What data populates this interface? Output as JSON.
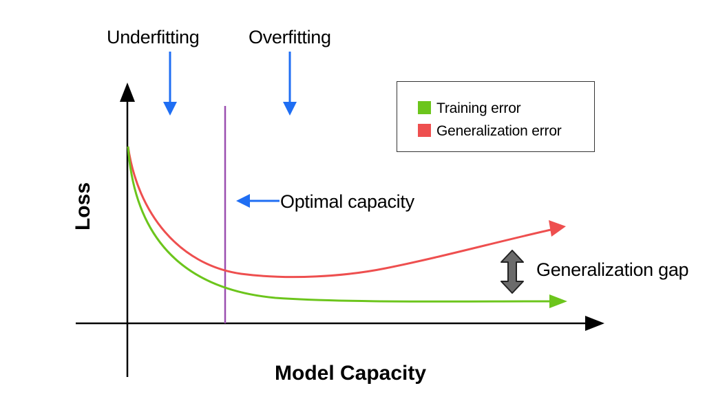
{
  "labels": {
    "underfitting": "Underfitting",
    "overfitting": "Overfitting",
    "optimal_capacity": "Optimal capacity",
    "generalization_gap": "Generalization gap",
    "x_axis": "Model Capacity",
    "y_axis": "Loss"
  },
  "legend": {
    "items": [
      {
        "label": "Training error",
        "color": "#6cc51c"
      },
      {
        "label": "Generalization error",
        "color": "#ee4f4f"
      }
    ]
  },
  "colors": {
    "training_curve": "#6cc51c",
    "generalization_curve": "#ee4f4f",
    "pointer_arrows": "#1f6ef3",
    "optimal_line": "#9b4fb0",
    "gap_arrow": "#6b6b6b",
    "axes": "#000000"
  }
}
